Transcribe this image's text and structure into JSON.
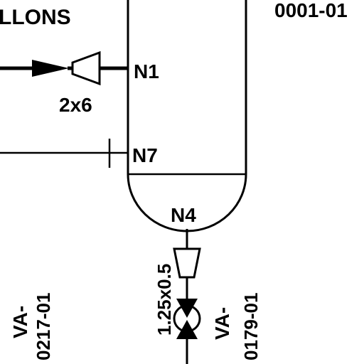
{
  "drawing": {
    "header_text": "LLONS",
    "tag_number": "0001-01",
    "nozzles": {
      "n1": "N1",
      "n7": "N7",
      "n4": "N4"
    },
    "reducer_sizes": {
      "inlet": "2x6",
      "outlet": "1.25x0.5"
    },
    "valves": {
      "left": {
        "prefix": "VA-",
        "number": "0217-01"
      },
      "right": {
        "prefix": "VA-",
        "number": "0179-01"
      }
    }
  }
}
